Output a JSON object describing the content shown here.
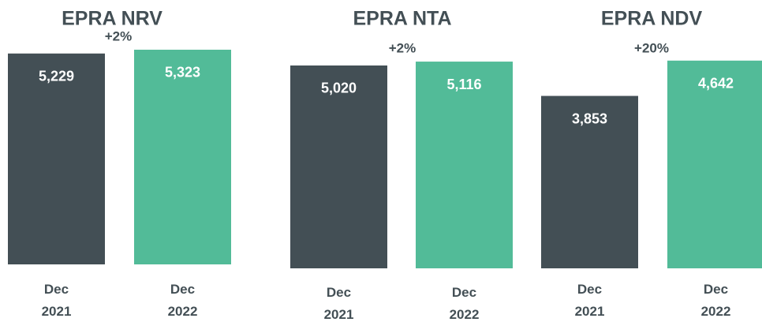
{
  "chart_data": [
    {
      "type": "bar",
      "title": "EPRA NRV",
      "annotation": "+2%",
      "categories": [
        "Dec 2021",
        "Dec 2022"
      ],
      "values": [
        5229,
        5323
      ],
      "value_labels": [
        "5,229",
        "5,323"
      ],
      "colors": [
        "#434f55",
        "#52bb98"
      ]
    },
    {
      "type": "bar",
      "title": "EPRA NTA",
      "annotation": "+2%",
      "categories": [
        "Dec 2021",
        "Dec 2022"
      ],
      "values": [
        5020,
        5116
      ],
      "value_labels": [
        "5,020",
        "5,116"
      ],
      "colors": [
        "#434f55",
        "#52bb98"
      ]
    },
    {
      "type": "bar",
      "title": "EPRA NDV",
      "annotation": "+20%",
      "categories": [
        "Dec 2021",
        "Dec 2022"
      ],
      "values": [
        3853,
        4642
      ],
      "value_labels": [
        "3,853",
        "4,642"
      ],
      "colors": [
        "#434f55",
        "#52bb98"
      ]
    }
  ]
}
